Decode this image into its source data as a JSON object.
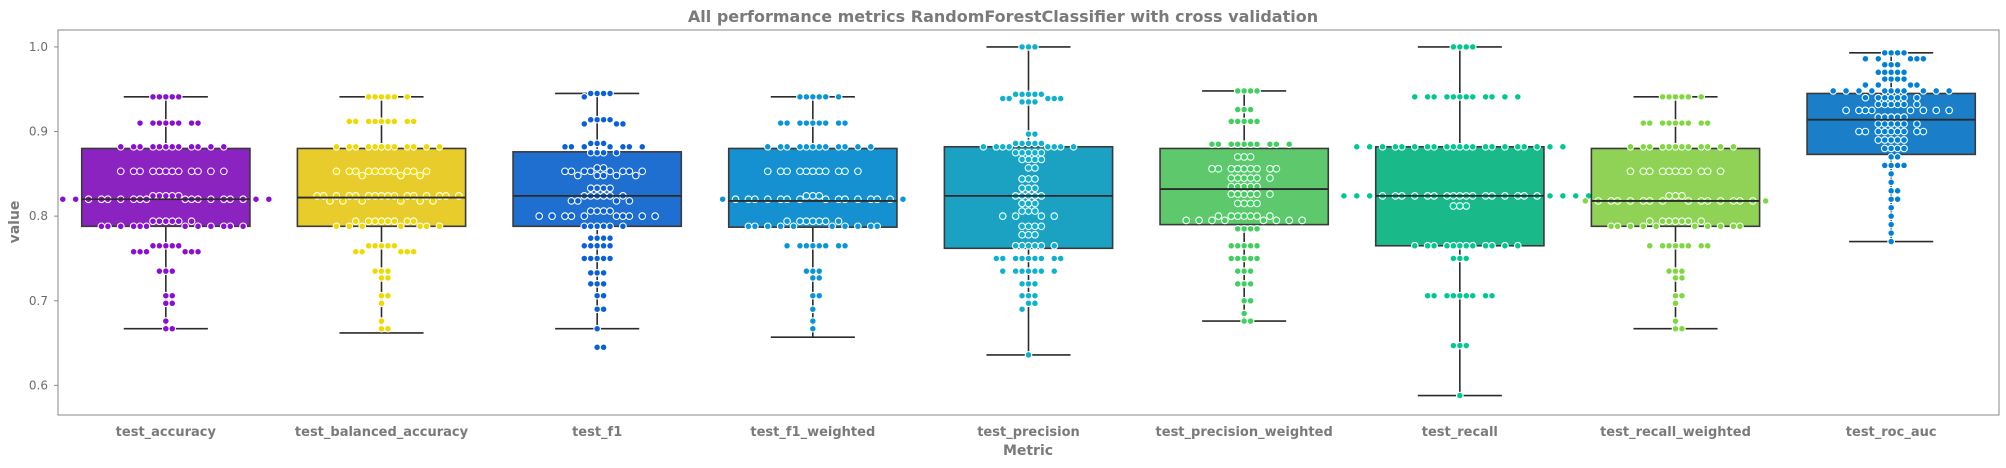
{
  "chart_data": {
    "type": "box",
    "title": "All performance metrics RandomForestClassifier with cross validation",
    "xlabel": "Metric",
    "ylabel": "value",
    "ylim": [
      0.565,
      1.02
    ],
    "yticks": [
      0.6,
      0.7,
      0.8,
      0.9,
      1.0
    ],
    "ytick_labels": [
      "0.6",
      "0.7",
      "0.8",
      "0.9",
      "1.0"
    ],
    "grid": false,
    "legend": "none",
    "overlay": "swarm",
    "categories": [
      "test_accuracy",
      "test_balanced_accuracy",
      "test_f1",
      "test_f1_weighted",
      "test_precision",
      "test_precision_weighted",
      "test_recall",
      "test_recall_weighted",
      "test_roc_auc"
    ],
    "colors": [
      "#8a23c0",
      "#e8cc2c",
      "#1f6fd0",
      "#1590d0",
      "#1ba2c2",
      "#5ec96c",
      "#1ab98a",
      "#8fd256",
      "#1a7fc8"
    ],
    "point_colors": [
      "#8a0fd0",
      "#f0d800",
      "#0a60d8",
      "#0a95d8",
      "#10b0d0",
      "#40d060",
      "#00c890",
      "#80d840",
      "#0080d8"
    ],
    "boxes": [
      {
        "whislo": 0.667,
        "q1": 0.788,
        "med": 0.82,
        "q3": 0.88,
        "whishi": 0.941
      },
      {
        "whislo": 0.662,
        "q1": 0.788,
        "med": 0.822,
        "q3": 0.88,
        "whishi": 0.941
      },
      {
        "whislo": 0.667,
        "q1": 0.788,
        "med": 0.824,
        "q3": 0.876,
        "whishi": 0.945
      },
      {
        "whislo": 0.657,
        "q1": 0.787,
        "med": 0.818,
        "q3": 0.88,
        "whishi": 0.941
      },
      {
        "whislo": 0.636,
        "q1": 0.762,
        "med": 0.824,
        "q3": 0.882,
        "whishi": 1.0
      },
      {
        "whislo": 0.676,
        "q1": 0.79,
        "med": 0.832,
        "q3": 0.88,
        "whishi": 0.948
      },
      {
        "whislo": 0.588,
        "q1": 0.765,
        "med": 0.824,
        "q3": 0.882,
        "whishi": 1.0
      },
      {
        "whislo": 0.667,
        "q1": 0.788,
        "med": 0.818,
        "q3": 0.88,
        "whishi": 0.941
      },
      {
        "whislo": 0.77,
        "q1": 0.873,
        "med": 0.914,
        "q3": 0.945,
        "whishi": 0.993
      }
    ],
    "swarm_values": [
      [
        0.941,
        0.941,
        0.941,
        0.941,
        0.941,
        0.91,
        0.91,
        0.91,
        0.91,
        0.91,
        0.91,
        0.91,
        0.91,
        0.882,
        0.882,
        0.882,
        0.882,
        0.882,
        0.882,
        0.882,
        0.882,
        0.882,
        0.882,
        0.882,
        0.882,
        0.853,
        0.853,
        0.853,
        0.853,
        0.853,
        0.853,
        0.853,
        0.853,
        0.853,
        0.853,
        0.853,
        0.853,
        0.824,
        0.824,
        0.824,
        0.824,
        0.824,
        0.82,
        0.82,
        0.82,
        0.82,
        0.82,
        0.82,
        0.82,
        0.82,
        0.82,
        0.82,
        0.82,
        0.82,
        0.82,
        0.82,
        0.82,
        0.82,
        0.82,
        0.82,
        0.794,
        0.794,
        0.794,
        0.794,
        0.794,
        0.794,
        0.788,
        0.788,
        0.788,
        0.788,
        0.788,
        0.788,
        0.788,
        0.788,
        0.788,
        0.788,
        0.788,
        0.788,
        0.765,
        0.765,
        0.765,
        0.765,
        0.765,
        0.758,
        0.758,
        0.758,
        0.758,
        0.758,
        0.758,
        0.735,
        0.735,
        0.735,
        0.706,
        0.706,
        0.697,
        0.697,
        0.676,
        0.667,
        0.667
      ],
      [
        0.941,
        0.941,
        0.941,
        0.941,
        0.941,
        0.941,
        0.912,
        0.912,
        0.912,
        0.912,
        0.912,
        0.912,
        0.912,
        0.912,
        0.912,
        0.882,
        0.882,
        0.882,
        0.882,
        0.882,
        0.882,
        0.882,
        0.882,
        0.882,
        0.882,
        0.882,
        0.882,
        0.853,
        0.853,
        0.853,
        0.853,
        0.853,
        0.853,
        0.853,
        0.853,
        0.853,
        0.853,
        0.853,
        0.848,
        0.848,
        0.848,
        0.824,
        0.824,
        0.824,
        0.824,
        0.824,
        0.824,
        0.824,
        0.824,
        0.824,
        0.824,
        0.824,
        0.824,
        0.824,
        0.824,
        0.824,
        0.824,
        0.818,
        0.818,
        0.818,
        0.818,
        0.818,
        0.818,
        0.794,
        0.794,
        0.794,
        0.794,
        0.794,
        0.794,
        0.794,
        0.794,
        0.788,
        0.788,
        0.788,
        0.788,
        0.788,
        0.788,
        0.788,
        0.765,
        0.765,
        0.765,
        0.765,
        0.765,
        0.758,
        0.758,
        0.758,
        0.758,
        0.758,
        0.735,
        0.735,
        0.735,
        0.727,
        0.727,
        0.706,
        0.706,
        0.697,
        0.676,
        0.667,
        0.667
      ],
      [
        0.945,
        0.945,
        0.945,
        0.945,
        0.941,
        0.914,
        0.914,
        0.914,
        0.914,
        0.909,
        0.909,
        0.909,
        0.886,
        0.886,
        0.886,
        0.882,
        0.882,
        0.882,
        0.882,
        0.882,
        0.882,
        0.882,
        0.875,
        0.875,
        0.875,
        0.875,
        0.857,
        0.857,
        0.853,
        0.853,
        0.853,
        0.853,
        0.853,
        0.853,
        0.853,
        0.853,
        0.848,
        0.848,
        0.848,
        0.848,
        0.848,
        0.833,
        0.833,
        0.833,
        0.833,
        0.824,
        0.824,
        0.824,
        0.824,
        0.824,
        0.824,
        0.818,
        0.818,
        0.818,
        0.818,
        0.806,
        0.806,
        0.806,
        0.806,
        0.8,
        0.8,
        0.8,
        0.8,
        0.8,
        0.8,
        0.8,
        0.8,
        0.8,
        0.8,
        0.788,
        0.788,
        0.788,
        0.788,
        0.788,
        0.788,
        0.774,
        0.774,
        0.774,
        0.774,
        0.765,
        0.765,
        0.765,
        0.765,
        0.765,
        0.75,
        0.75,
        0.75,
        0.75,
        0.75,
        0.733,
        0.733,
        0.733,
        0.72,
        0.72,
        0.72,
        0.706,
        0.706,
        0.69,
        0.69,
        0.667,
        0.645,
        0.645
      ],
      [
        0.941,
        0.941,
        0.941,
        0.941,
        0.941,
        0.941,
        0.91,
        0.91,
        0.91,
        0.91,
        0.91,
        0.91,
        0.91,
        0.91,
        0.91,
        0.882,
        0.882,
        0.882,
        0.882,
        0.882,
        0.882,
        0.882,
        0.882,
        0.882,
        0.882,
        0.882,
        0.882,
        0.853,
        0.853,
        0.853,
        0.853,
        0.853,
        0.853,
        0.853,
        0.853,
        0.853,
        0.853,
        0.853,
        0.824,
        0.824,
        0.824,
        0.82,
        0.82,
        0.82,
        0.82,
        0.82,
        0.82,
        0.82,
        0.82,
        0.82,
        0.82,
        0.82,
        0.82,
        0.82,
        0.82,
        0.82,
        0.82,
        0.794,
        0.794,
        0.794,
        0.794,
        0.794,
        0.794,
        0.794,
        0.788,
        0.788,
        0.788,
        0.788,
        0.788,
        0.788,
        0.788,
        0.788,
        0.788,
        0.788,
        0.765,
        0.765,
        0.765,
        0.765,
        0.765,
        0.765,
        0.765,
        0.765,
        0.735,
        0.735,
        0.735,
        0.727,
        0.727,
        0.706,
        0.706,
        0.69,
        0.676,
        0.667
      ],
      [
        1.0,
        1.0,
        1.0,
        0.944,
        0.944,
        0.944,
        0.944,
        0.944,
        0.939,
        0.939,
        0.939,
        0.939,
        0.939,
        0.935,
        0.935,
        0.935,
        0.897,
        0.897,
        0.886,
        0.886,
        0.886,
        0.886,
        0.886,
        0.882,
        0.882,
        0.882,
        0.882,
        0.882,
        0.882,
        0.882,
        0.882,
        0.875,
        0.875,
        0.875,
        0.875,
        0.875,
        0.867,
        0.867,
        0.867,
        0.867,
        0.857,
        0.857,
        0.844,
        0.844,
        0.844,
        0.833,
        0.833,
        0.833,
        0.824,
        0.824,
        0.824,
        0.824,
        0.824,
        0.815,
        0.815,
        0.815,
        0.806,
        0.806,
        0.806,
        0.8,
        0.8,
        0.8,
        0.8,
        0.788,
        0.788,
        0.788,
        0.788,
        0.778,
        0.778,
        0.778,
        0.765,
        0.765,
        0.765,
        0.765,
        0.765,
        0.765,
        0.75,
        0.75,
        0.75,
        0.75,
        0.75,
        0.75,
        0.75,
        0.75,
        0.75,
        0.735,
        0.735,
        0.735,
        0.735,
        0.735,
        0.735,
        0.735,
        0.72,
        0.72,
        0.72,
        0.706,
        0.706,
        0.706,
        0.697,
        0.697,
        0.69,
        0.636
      ],
      [
        0.948,
        0.948,
        0.948,
        0.948,
        0.926,
        0.926,
        0.926,
        0.912,
        0.912,
        0.912,
        0.912,
        0.912,
        0.885,
        0.885,
        0.885,
        0.885,
        0.885,
        0.885,
        0.885,
        0.885,
        0.885,
        0.885,
        0.87,
        0.87,
        0.87,
        0.856,
        0.856,
        0.856,
        0.856,
        0.856,
        0.856,
        0.856,
        0.856,
        0.856,
        0.845,
        0.845,
        0.845,
        0.845,
        0.845,
        0.845,
        0.835,
        0.835,
        0.835,
        0.835,
        0.835,
        0.826,
        0.826,
        0.826,
        0.826,
        0.826,
        0.826,
        0.815,
        0.815,
        0.815,
        0.815,
        0.8,
        0.8,
        0.8,
        0.8,
        0.8,
        0.8,
        0.8,
        0.795,
        0.795,
        0.795,
        0.795,
        0.795,
        0.795,
        0.795,
        0.795,
        0.785,
        0.785,
        0.785,
        0.785,
        0.765,
        0.765,
        0.765,
        0.765,
        0.765,
        0.75,
        0.75,
        0.75,
        0.75,
        0.75,
        0.735,
        0.735,
        0.735,
        0.72,
        0.72,
        0.72,
        0.7,
        0.7,
        0.685,
        0.676,
        0.676
      ],
      [
        1.0,
        1.0,
        1.0,
        1.0,
        0.941,
        0.941,
        0.941,
        0.941,
        0.941,
        0.941,
        0.941,
        0.941,
        0.941,
        0.941,
        0.941,
        0.941,
        0.882,
        0.882,
        0.882,
        0.882,
        0.882,
        0.882,
        0.882,
        0.882,
        0.882,
        0.882,
        0.882,
        0.882,
        0.882,
        0.882,
        0.882,
        0.882,
        0.882,
        0.882,
        0.882,
        0.882,
        0.882,
        0.824,
        0.824,
        0.824,
        0.824,
        0.824,
        0.824,
        0.824,
        0.824,
        0.824,
        0.824,
        0.824,
        0.824,
        0.824,
        0.824,
        0.824,
        0.824,
        0.824,
        0.824,
        0.824,
        0.824,
        0.824,
        0.824,
        0.824,
        0.824,
        0.812,
        0.812,
        0.812,
        0.765,
        0.765,
        0.765,
        0.765,
        0.765,
        0.765,
        0.765,
        0.765,
        0.765,
        0.765,
        0.765,
        0.765,
        0.75,
        0.75,
        0.75,
        0.706,
        0.706,
        0.706,
        0.706,
        0.706,
        0.706,
        0.706,
        0.706,
        0.706,
        0.647,
        0.647,
        0.647,
        0.588
      ],
      [
        0.941,
        0.941,
        0.941,
        0.941,
        0.941,
        0.941,
        0.91,
        0.91,
        0.91,
        0.91,
        0.91,
        0.91,
        0.91,
        0.91,
        0.91,
        0.882,
        0.882,
        0.882,
        0.882,
        0.882,
        0.882,
        0.882,
        0.882,
        0.882,
        0.882,
        0.882,
        0.882,
        0.853,
        0.853,
        0.853,
        0.853,
        0.853,
        0.853,
        0.853,
        0.853,
        0.853,
        0.853,
        0.853,
        0.824,
        0.824,
        0.824,
        0.818,
        0.818,
        0.818,
        0.818,
        0.818,
        0.818,
        0.818,
        0.818,
        0.818,
        0.818,
        0.818,
        0.818,
        0.818,
        0.818,
        0.818,
        0.818,
        0.794,
        0.794,
        0.794,
        0.794,
        0.794,
        0.794,
        0.794,
        0.788,
        0.788,
        0.788,
        0.788,
        0.788,
        0.788,
        0.788,
        0.788,
        0.788,
        0.788,
        0.765,
        0.765,
        0.765,
        0.765,
        0.765,
        0.765,
        0.765,
        0.765,
        0.735,
        0.735,
        0.735,
        0.727,
        0.727,
        0.706,
        0.706,
        0.697,
        0.676,
        0.667,
        0.667
      ],
      [
        0.993,
        0.993,
        0.993,
        0.993,
        0.986,
        0.986,
        0.986,
        0.986,
        0.986,
        0.979,
        0.979,
        0.979,
        0.97,
        0.97,
        0.97,
        0.97,
        0.97,
        0.962,
        0.962,
        0.962,
        0.962,
        0.955,
        0.955,
        0.955,
        0.955,
        0.948,
        0.948,
        0.948,
        0.948,
        0.948,
        0.948,
        0.948,
        0.948,
        0.948,
        0.948,
        0.948,
        0.94,
        0.94,
        0.94,
        0.94,
        0.94,
        0.94,
        0.94,
        0.932,
        0.932,
        0.932,
        0.932,
        0.932,
        0.932,
        0.925,
        0.925,
        0.925,
        0.925,
        0.925,
        0.925,
        0.925,
        0.925,
        0.917,
        0.917,
        0.917,
        0.917,
        0.917,
        0.909,
        0.909,
        0.909,
        0.909,
        0.909,
        0.909,
        0.9,
        0.9,
        0.9,
        0.9,
        0.9,
        0.9,
        0.9,
        0.9,
        0.9,
        0.89,
        0.89,
        0.89,
        0.89,
        0.89,
        0.88,
        0.88,
        0.88,
        0.88,
        0.87,
        0.87,
        0.86,
        0.86,
        0.86,
        0.86,
        0.85,
        0.84,
        0.83,
        0.83,
        0.82,
        0.82,
        0.81,
        0.8,
        0.79,
        0.78,
        0.77
      ]
    ]
  }
}
